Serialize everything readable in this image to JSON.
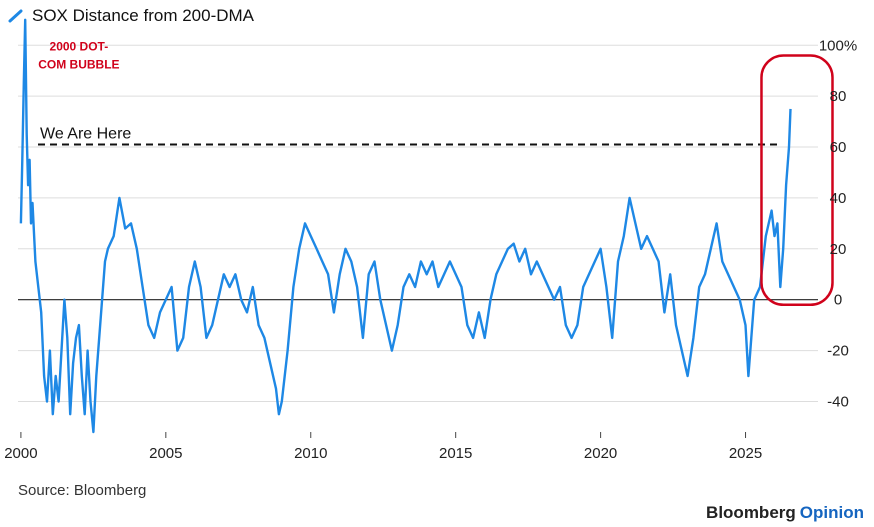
{
  "colors": {
    "series": "#1e88e5",
    "grid": "#dddddd",
    "zero_line": "#222222",
    "reference_line": "#111111",
    "highlight": "#d0021b",
    "brand_accent": "#1565c0"
  },
  "legend": {
    "icon": "line-slash-icon",
    "label": "SOX Distance from 200-DMA"
  },
  "source": "Source: Bloomberg",
  "brand": {
    "name": "Bloomberg",
    "suffix": "Opinion"
  },
  "chart_data": {
    "type": "line",
    "title": "",
    "xlabel": "",
    "ylabel": "",
    "xlim": [
      1999.9,
      2027.5
    ],
    "ylim": [
      -52,
      106
    ],
    "xticks": [
      2000,
      2005,
      2010,
      2015,
      2020,
      2025
    ],
    "xtick_labels": [
      "2000",
      "2005",
      "2010",
      "2015",
      "2020",
      "2025"
    ],
    "yticks": [
      100,
      80,
      60,
      40,
      20,
      0,
      -20,
      -40
    ],
    "ytick_labels": [
      "100%",
      "80",
      "60",
      "40",
      "20",
      "0",
      "-20",
      "-40"
    ],
    "grid": "horizontal",
    "legend_position": "top-left",
    "series": [
      {
        "name": "SOX Distance from 200-DMA",
        "x": [
          2000.0,
          2000.05,
          2000.1,
          2000.15,
          2000.2,
          2000.25,
          2000.3,
          2000.35,
          2000.4,
          2000.5,
          2000.6,
          2000.7,
          2000.8,
          2000.9,
          2001.0,
          2001.1,
          2001.2,
          2001.3,
          2001.4,
          2001.5,
          2001.6,
          2001.7,
          2001.8,
          2001.9,
          2002.0,
          2002.1,
          2002.2,
          2002.3,
          2002.4,
          2002.5,
          2002.6,
          2002.7,
          2002.8,
          2002.9,
          2003.0,
          2003.2,
          2003.4,
          2003.6,
          2003.8,
          2004.0,
          2004.2,
          2004.4,
          2004.6,
          2004.8,
          2005.0,
          2005.2,
          2005.4,
          2005.6,
          2005.8,
          2006.0,
          2006.2,
          2006.4,
          2006.6,
          2006.8,
          2007.0,
          2007.2,
          2007.4,
          2007.6,
          2007.8,
          2008.0,
          2008.2,
          2008.4,
          2008.6,
          2008.8,
          2008.9,
          2009.0,
          2009.2,
          2009.4,
          2009.6,
          2009.8,
          2010.0,
          2010.2,
          2010.4,
          2010.6,
          2010.8,
          2011.0,
          2011.2,
          2011.4,
          2011.6,
          2011.8,
          2012.0,
          2012.2,
          2012.4,
          2012.6,
          2012.8,
          2013.0,
          2013.2,
          2013.4,
          2013.6,
          2013.8,
          2014.0,
          2014.2,
          2014.4,
          2014.6,
          2014.8,
          2015.0,
          2015.2,
          2015.4,
          2015.6,
          2015.8,
          2016.0,
          2016.2,
          2016.4,
          2016.6,
          2016.8,
          2017.0,
          2017.2,
          2017.4,
          2017.6,
          2017.8,
          2018.0,
          2018.2,
          2018.4,
          2018.6,
          2018.8,
          2019.0,
          2019.2,
          2019.4,
          2019.6,
          2019.8,
          2020.0,
          2020.2,
          2020.4,
          2020.6,
          2020.8,
          2021.0,
          2021.2,
          2021.4,
          2021.6,
          2021.8,
          2022.0,
          2022.2,
          2022.4,
          2022.6,
          2022.8,
          2023.0,
          2023.2,
          2023.4,
          2023.6,
          2023.8,
          2024.0,
          2024.2,
          2024.4,
          2024.6,
          2024.8,
          2025.0,
          2025.1,
          2025.2,
          2025.3,
          2025.5,
          2025.7,
          2025.9,
          2026.0,
          2026.1,
          2026.2,
          2026.3,
          2026.4,
          2026.5,
          2026.55
        ],
        "values": [
          30,
          55,
          85,
          110,
          65,
          45,
          55,
          30,
          38,
          15,
          5,
          -5,
          -30,
          -40,
          -20,
          -45,
          -30,
          -40,
          -20,
          0,
          -15,
          -45,
          -25,
          -15,
          -10,
          -30,
          -45,
          -20,
          -40,
          -52,
          -30,
          -15,
          0,
          15,
          20,
          25,
          40,
          28,
          30,
          20,
          5,
          -10,
          -15,
          -5,
          0,
          5,
          -20,
          -15,
          5,
          15,
          5,
          -15,
          -10,
          0,
          10,
          5,
          10,
          0,
          -5,
          5,
          -10,
          -15,
          -25,
          -35,
          -45,
          -40,
          -20,
          5,
          20,
          30,
          25,
          20,
          15,
          10,
          -5,
          10,
          20,
          15,
          5,
          -15,
          10,
          15,
          0,
          -10,
          -20,
          -10,
          5,
          10,
          5,
          15,
          10,
          15,
          5,
          10,
          15,
          10,
          5,
          -10,
          -15,
          -5,
          -15,
          0,
          10,
          15,
          20,
          22,
          15,
          20,
          10,
          15,
          10,
          5,
          0,
          5,
          -10,
          -15,
          -10,
          5,
          10,
          15,
          20,
          5,
          -15,
          15,
          25,
          40,
          30,
          20,
          25,
          20,
          15,
          -5,
          10,
          -10,
          -20,
          -30,
          -15,
          5,
          10,
          20,
          30,
          15,
          10,
          5,
          0,
          -10,
          -30,
          -15,
          0,
          5,
          25,
          35,
          25,
          30,
          5,
          20,
          45,
          60,
          75
        ]
      }
    ],
    "reference_line": {
      "y": 61,
      "label": "We Are Here"
    },
    "annotations": [
      {
        "text_lines": [
          "2000 DOT-",
          "COM BUBBLE"
        ],
        "x": 2002.0,
        "y": 98
      }
    ],
    "highlight": {
      "x0": 2025.55,
      "x1": 2028.0,
      "y0": -2,
      "y1": 96
    }
  }
}
